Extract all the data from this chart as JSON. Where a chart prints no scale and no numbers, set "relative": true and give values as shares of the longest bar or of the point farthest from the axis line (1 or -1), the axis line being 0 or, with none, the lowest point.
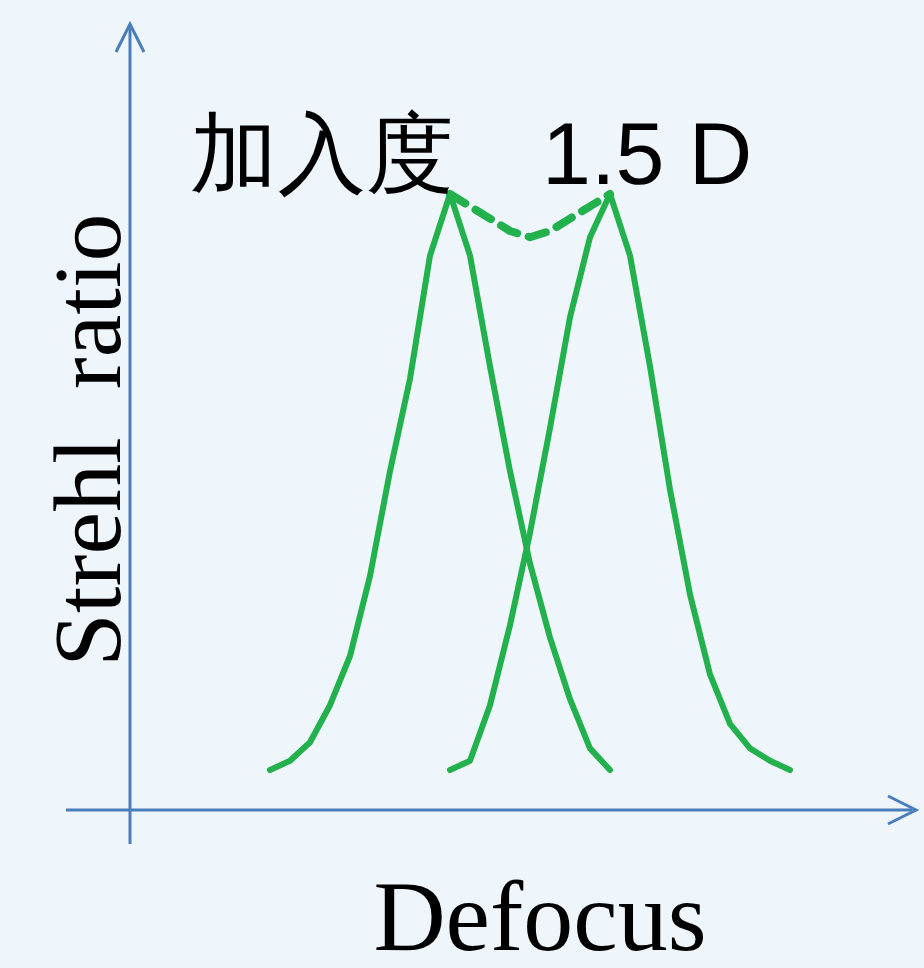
{
  "chart_data": {
    "type": "line",
    "relative": true,
    "title": "加入度　1.5 D",
    "xlabel": "Defocus",
    "ylabel": "Strehl  ratio",
    "categories": [
      null,
      null,
      null,
      null,
      null,
      null,
      null,
      null,
      null,
      null,
      null,
      null,
      null,
      null,
      null,
      null,
      null,
      null,
      null,
      null,
      null,
      null,
      null,
      null,
      null,
      null,
      null,
      null,
      null,
      null,
      null,
      null,
      null,
      null,
      null,
      null,
      null,
      null
    ],
    "series": [
      {
        "color": "#22b14c",
        "line_style": "solid",
        "values": [
          null,
          null,
          null,
          null,
          null,
          null,
          null,
          0.065,
          0.08,
          0.11,
          0.17,
          0.25,
          0.38,
          0.55,
          0.7,
          0.9,
          1.0,
          0.9,
          0.72,
          0.55,
          0.4,
          0.28,
          0.18,
          0.1,
          0.065,
          null,
          null,
          null,
          null,
          null,
          null,
          null,
          null,
          null,
          null,
          null,
          null,
          null
        ]
      },
      {
        "color": "#22b14c",
        "line_style": "solid",
        "values": [
          null,
          null,
          null,
          null,
          null,
          null,
          null,
          null,
          null,
          null,
          null,
          null,
          null,
          null,
          null,
          null,
          0.065,
          0.08,
          0.17,
          0.3,
          0.45,
          0.62,
          0.8,
          0.93,
          1.0,
          0.9,
          0.72,
          0.52,
          0.35,
          0.22,
          0.14,
          0.1,
          0.08,
          0.065,
          null,
          null,
          null,
          null
        ]
      },
      {
        "color": "#22b14c",
        "line_style": "dashed",
        "values": [
          null,
          null,
          null,
          null,
          null,
          null,
          null,
          null,
          null,
          null,
          null,
          null,
          null,
          null,
          null,
          null,
          1.0,
          0.98,
          0.96,
          0.94,
          0.93,
          0.94,
          0.96,
          0.98,
          1.0,
          null,
          null,
          null,
          null,
          null,
          null,
          null,
          null,
          null,
          null,
          null,
          null,
          null
        ]
      }
    ]
  }
}
